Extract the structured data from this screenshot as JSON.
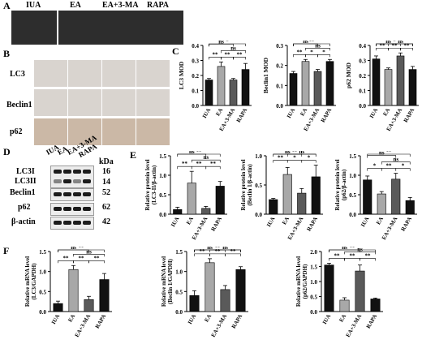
{
  "panels": {
    "A": "A",
    "B": "B",
    "C": "C",
    "D": "D",
    "E": "E",
    "F": "F"
  },
  "groups": [
    "IUA",
    "EA",
    "EA+3-MA",
    "RAPA"
  ],
  "ihc_rows": [
    "LC3",
    "Beclin1",
    "p62"
  ],
  "western": {
    "kda_label": "kDa",
    "rows": [
      {
        "label": "LC3I",
        "kda": "16"
      },
      {
        "label": "LC3II",
        "kda": "14"
      },
      {
        "label": "Beclin1",
        "kda": "52"
      },
      {
        "label": "p62",
        "kda": "62"
      },
      {
        "label": "β-actin",
        "kda": "42"
      }
    ]
  },
  "colors": {
    "IUA": "#000000",
    "EA": "#9a9a9a",
    "EA+3-MA": "#555555",
    "RAPA": "#111111"
  },
  "chart_data": [
    {
      "id": "C1",
      "type": "bar",
      "categories": [
        "IUA",
        "EA",
        "EA+3-MA",
        "RAPA"
      ],
      "values": [
        0.17,
        0.26,
        0.17,
        0.24
      ],
      "errors": [
        0.01,
        0.03,
        0.01,
        0.04
      ],
      "ylabel": "LC3 MOD",
      "ylim": [
        0,
        0.4
      ],
      "yticks": [
        "0.0",
        "0.1",
        "0.2",
        "0.3",
        "0.4"
      ],
      "sig": [
        {
          "a": 0,
          "b": 3,
          "t": "*"
        },
        {
          "a": 0,
          "b": 2,
          "t": "ns"
        },
        {
          "a": 1,
          "b": 3,
          "t": "ns"
        },
        {
          "a": 2,
          "b": 3,
          "t": "**"
        },
        {
          "a": 0,
          "b": 1,
          "t": "**"
        },
        {
          "a": 1,
          "b": 2,
          "t": "**"
        }
      ]
    },
    {
      "id": "C2",
      "type": "bar",
      "categories": [
        "IUA",
        "EA",
        "EA+3-MA",
        "RAPA"
      ],
      "values": [
        0.16,
        0.22,
        0.17,
        0.22
      ],
      "errors": [
        0.01,
        0.01,
        0.01,
        0.01
      ],
      "ylabel": "Beclin1 MOD",
      "ylim": [
        0,
        0.3
      ],
      "yticks": [
        "0.0",
        "0.1",
        "0.2",
        "0.3"
      ],
      "sig": [
        {
          "a": 0,
          "b": 3,
          "t": "**"
        },
        {
          "a": 0,
          "b": 2,
          "t": "ns"
        },
        {
          "a": 1,
          "b": 3,
          "t": "ns"
        },
        {
          "a": 0,
          "b": 1,
          "t": "**"
        },
        {
          "a": 1,
          "b": 2,
          "t": "*"
        },
        {
          "a": 2,
          "b": 3,
          "t": "*"
        }
      ]
    },
    {
      "id": "C3",
      "type": "bar",
      "categories": [
        "IUA",
        "EA",
        "EA+3-MA",
        "RAPA"
      ],
      "values": [
        0.31,
        0.24,
        0.33,
        0.24
      ],
      "errors": [
        0.02,
        0.01,
        0.02,
        0.02
      ],
      "ylabel": "p62 MOD",
      "ylim": [
        0,
        0.4
      ],
      "yticks": [
        "0.0",
        "0.1",
        "0.2",
        "0.3",
        "0.4"
      ],
      "sig": [
        {
          "a": 0,
          "b": 3,
          "t": "*"
        },
        {
          "a": 0,
          "b": 2,
          "t": "ns"
        },
        {
          "a": 1,
          "b": 3,
          "t": "ns"
        },
        {
          "a": 0,
          "b": 1,
          "t": "**"
        },
        {
          "a": 1,
          "b": 2,
          "t": "**"
        },
        {
          "a": 2,
          "b": 3,
          "t": "**"
        }
      ]
    },
    {
      "id": "E1",
      "type": "bar",
      "categories": [
        "IUA",
        "EA",
        "EA+3-MA",
        "RAPA"
      ],
      "values": [
        0.12,
        0.8,
        0.15,
        0.72
      ],
      "errors": [
        0.06,
        0.3,
        0.05,
        0.12
      ],
      "ylabel": "Relative protein level (LC3-II/β-actin)",
      "ylim": [
        0,
        1.5
      ],
      "yticks": [
        "0.0",
        "0.5",
        "1.0",
        "1.5"
      ],
      "sig": [
        {
          "a": 0,
          "b": 3,
          "t": "**"
        },
        {
          "a": 0,
          "b": 2,
          "t": "ns"
        },
        {
          "a": 1,
          "b": 3,
          "t": "ns"
        },
        {
          "a": 0,
          "b": 1,
          "t": "**"
        },
        {
          "a": 1,
          "b": 2,
          "t": "**"
        },
        {
          "a": 2,
          "b": 3,
          "t": "**"
        }
      ]
    },
    {
      "id": "E2",
      "type": "bar",
      "categories": [
        "IUA",
        "EA",
        "EA+3-MA",
        "RAPA"
      ],
      "values": [
        0.25,
        0.68,
        0.36,
        0.64
      ],
      "errors": [
        0.02,
        0.12,
        0.08,
        0.2
      ],
      "ylabel": "Relative protein level (Beclin 1/β-actin)",
      "ylim": [
        0,
        1.0
      ],
      "yticks": [
        "0.0",
        "0.5",
        "1.0"
      ],
      "sig": [
        {
          "a": 0,
          "b": 3,
          "t": "**"
        },
        {
          "a": 0,
          "b": 2,
          "t": "ns"
        },
        {
          "a": 1,
          "b": 3,
          "t": "ns"
        },
        {
          "a": 0,
          "b": 1,
          "t": "**"
        },
        {
          "a": 1,
          "b": 2,
          "t": "*"
        },
        {
          "a": 2,
          "b": 3,
          "t": "*"
        }
      ]
    },
    {
      "id": "E3",
      "type": "bar",
      "categories": [
        "IUA",
        "EA",
        "EA+3-MA",
        "RAPA"
      ],
      "values": [
        0.88,
        0.52,
        0.9,
        0.35
      ],
      "errors": [
        0.1,
        0.06,
        0.15,
        0.08
      ],
      "ylabel": "Relative protein level (p62/β-actin)",
      "ylim": [
        0,
        1.5
      ],
      "yticks": [
        "0.0",
        "0.5",
        "1.0",
        "1.5"
      ],
      "sig": [
        {
          "a": 0,
          "b": 3,
          "t": "**"
        },
        {
          "a": 0,
          "b": 2,
          "t": "ns"
        },
        {
          "a": 1,
          "b": 3,
          "t": "ns"
        },
        {
          "a": 0,
          "b": 1,
          "t": "*"
        },
        {
          "a": 1,
          "b": 2,
          "t": "**"
        },
        {
          "a": 2,
          "b": 3,
          "t": "*"
        }
      ]
    },
    {
      "id": "F1",
      "type": "bar",
      "categories": [
        "IUA",
        "EA",
        "EA+3-MA",
        "RAPA"
      ],
      "values": [
        0.2,
        1.05,
        0.3,
        0.8
      ],
      "errors": [
        0.06,
        0.1,
        0.08,
        0.15
      ],
      "ylabel": "Relative mRNA level (LC3/GAPDH)",
      "ylim": [
        0,
        1.5
      ],
      "yticks": [
        "0.0",
        "0.5",
        "1.0",
        "1.5"
      ],
      "sig": [
        {
          "a": 0,
          "b": 3,
          "t": "**"
        },
        {
          "a": 0,
          "b": 2,
          "t": "ns"
        },
        {
          "a": 1,
          "b": 3,
          "t": "ns"
        },
        {
          "a": 0,
          "b": 1,
          "t": "**"
        },
        {
          "a": 1,
          "b": 2,
          "t": "**"
        },
        {
          "a": 2,
          "b": 3,
          "t": "**"
        }
      ]
    },
    {
      "id": "F2",
      "type": "bar",
      "categories": [
        "IUA",
        "EA",
        "EA+3-MA",
        "RAPA"
      ],
      "values": [
        0.4,
        1.22,
        0.55,
        1.05
      ],
      "errors": [
        0.12,
        0.1,
        0.1,
        0.07
      ],
      "ylabel": "Relative mRNA level (Beclin 1/GAPDH)",
      "ylim": [
        0,
        1.5
      ],
      "yticks": [
        "0.0",
        "0.5",
        "1.0",
        "1.5"
      ],
      "sig": [
        {
          "a": 0,
          "b": 3,
          "t": "**"
        },
        {
          "a": 0,
          "b": 2,
          "t": "ns"
        },
        {
          "a": 1,
          "b": 3,
          "t": "ns"
        },
        {
          "a": 0,
          "b": 1,
          "t": "**"
        },
        {
          "a": 1,
          "b": 2,
          "t": "**"
        },
        {
          "a": 2,
          "b": 3,
          "t": "**"
        }
      ]
    },
    {
      "id": "F3",
      "type": "bar",
      "categories": [
        "IUA",
        "EA",
        "EA+3-MA",
        "RAPA"
      ],
      "values": [
        1.55,
        0.38,
        1.35,
        0.42
      ],
      "errors": [
        0.06,
        0.08,
        0.2,
        0.03
      ],
      "ylabel": "Relative mRNA level (p62/GAPDH)",
      "ylim": [
        0,
        2.0
      ],
      "yticks": [
        "0.0",
        "0.5",
        "1.0",
        "1.5",
        "2.0"
      ],
      "sig": [
        {
          "a": 0,
          "b": 3,
          "t": "**"
        },
        {
          "a": 0,
          "b": 2,
          "t": "ns"
        },
        {
          "a": 1,
          "b": 3,
          "t": "ns"
        },
        {
          "a": 0,
          "b": 1,
          "t": "**"
        },
        {
          "a": 1,
          "b": 2,
          "t": "**"
        },
        {
          "a": 2,
          "b": 3,
          "t": "**"
        }
      ]
    }
  ]
}
